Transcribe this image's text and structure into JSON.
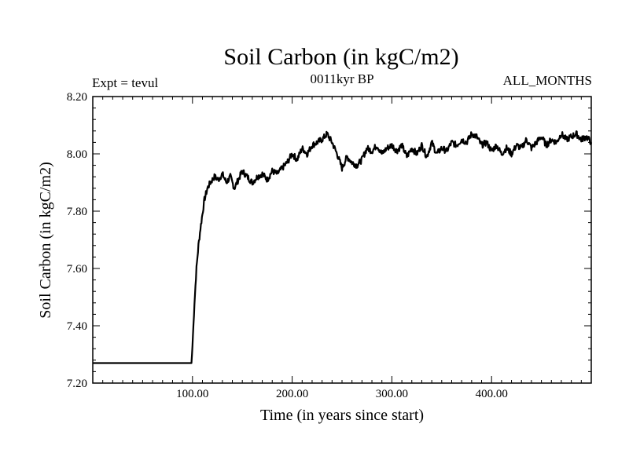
{
  "chart_data": {
    "type": "line",
    "title": "Soil Carbon (in kgC/m2)",
    "subtitle_left": "Expt = tevul",
    "subtitle_center": "0011kyr BP",
    "subtitle_right": "ALL_MONTHS",
    "xlabel": "Time (in years since start)",
    "ylabel": "Soil Carbon (in kgC/m2)",
    "xlim": [
      0,
      500
    ],
    "ylim": [
      7.2,
      8.2
    ],
    "x_ticks": [
      100,
      200,
      300,
      400
    ],
    "x_tick_labels": [
      "100.00",
      "200.00",
      "300.00",
      "400.00"
    ],
    "y_ticks": [
      7.2,
      7.4,
      7.6,
      7.8,
      8.0,
      8.2
    ],
    "y_tick_labels": [
      "7.20",
      "7.40",
      "7.60",
      "7.80",
      "8.00",
      "8.20"
    ],
    "series": [
      {
        "name": "Soil Carbon",
        "x": [
          0,
          99,
          100,
          102,
          104,
          106,
          108,
          110,
          112,
          115,
          118,
          122,
          126,
          130,
          134,
          138,
          142,
          146,
          150,
          155,
          160,
          165,
          170,
          175,
          180,
          185,
          190,
          195,
          200,
          205,
          210,
          215,
          220,
          225,
          230,
          235,
          240,
          245,
          250,
          255,
          260,
          265,
          270,
          275,
          280,
          285,
          290,
          295,
          300,
          305,
          310,
          315,
          320,
          325,
          330,
          335,
          340,
          345,
          350,
          355,
          360,
          365,
          370,
          375,
          380,
          385,
          390,
          395,
          400,
          405,
          410,
          415,
          420,
          425,
          430,
          435,
          440,
          445,
          450,
          455,
          460,
          465,
          470,
          475,
          480,
          485,
          490,
          495,
          500
        ],
        "values": [
          7.27,
          7.27,
          7.33,
          7.48,
          7.6,
          7.68,
          7.74,
          7.79,
          7.84,
          7.88,
          7.9,
          7.92,
          7.91,
          7.93,
          7.9,
          7.92,
          7.88,
          7.91,
          7.94,
          7.92,
          7.9,
          7.92,
          7.93,
          7.91,
          7.94,
          7.93,
          7.95,
          7.97,
          8.0,
          7.98,
          8.02,
          8.0,
          8.03,
          8.04,
          8.05,
          8.07,
          8.04,
          8.0,
          7.95,
          7.99,
          7.97,
          7.96,
          7.98,
          8.02,
          8.01,
          8.03,
          8.0,
          8.02,
          8.03,
          8.01,
          8.03,
          7.99,
          8.02,
          8.0,
          8.03,
          7.99,
          8.04,
          8.0,
          8.02,
          8.01,
          8.04,
          8.03,
          8.05,
          8.04,
          8.07,
          8.06,
          8.03,
          8.04,
          8.01,
          8.03,
          8.0,
          8.02,
          8.0,
          8.03,
          8.02,
          8.05,
          8.02,
          8.04,
          8.06,
          8.03,
          8.05,
          8.04,
          8.07,
          8.05,
          8.06,
          8.07,
          8.05,
          8.06,
          8.04
        ]
      }
    ]
  }
}
